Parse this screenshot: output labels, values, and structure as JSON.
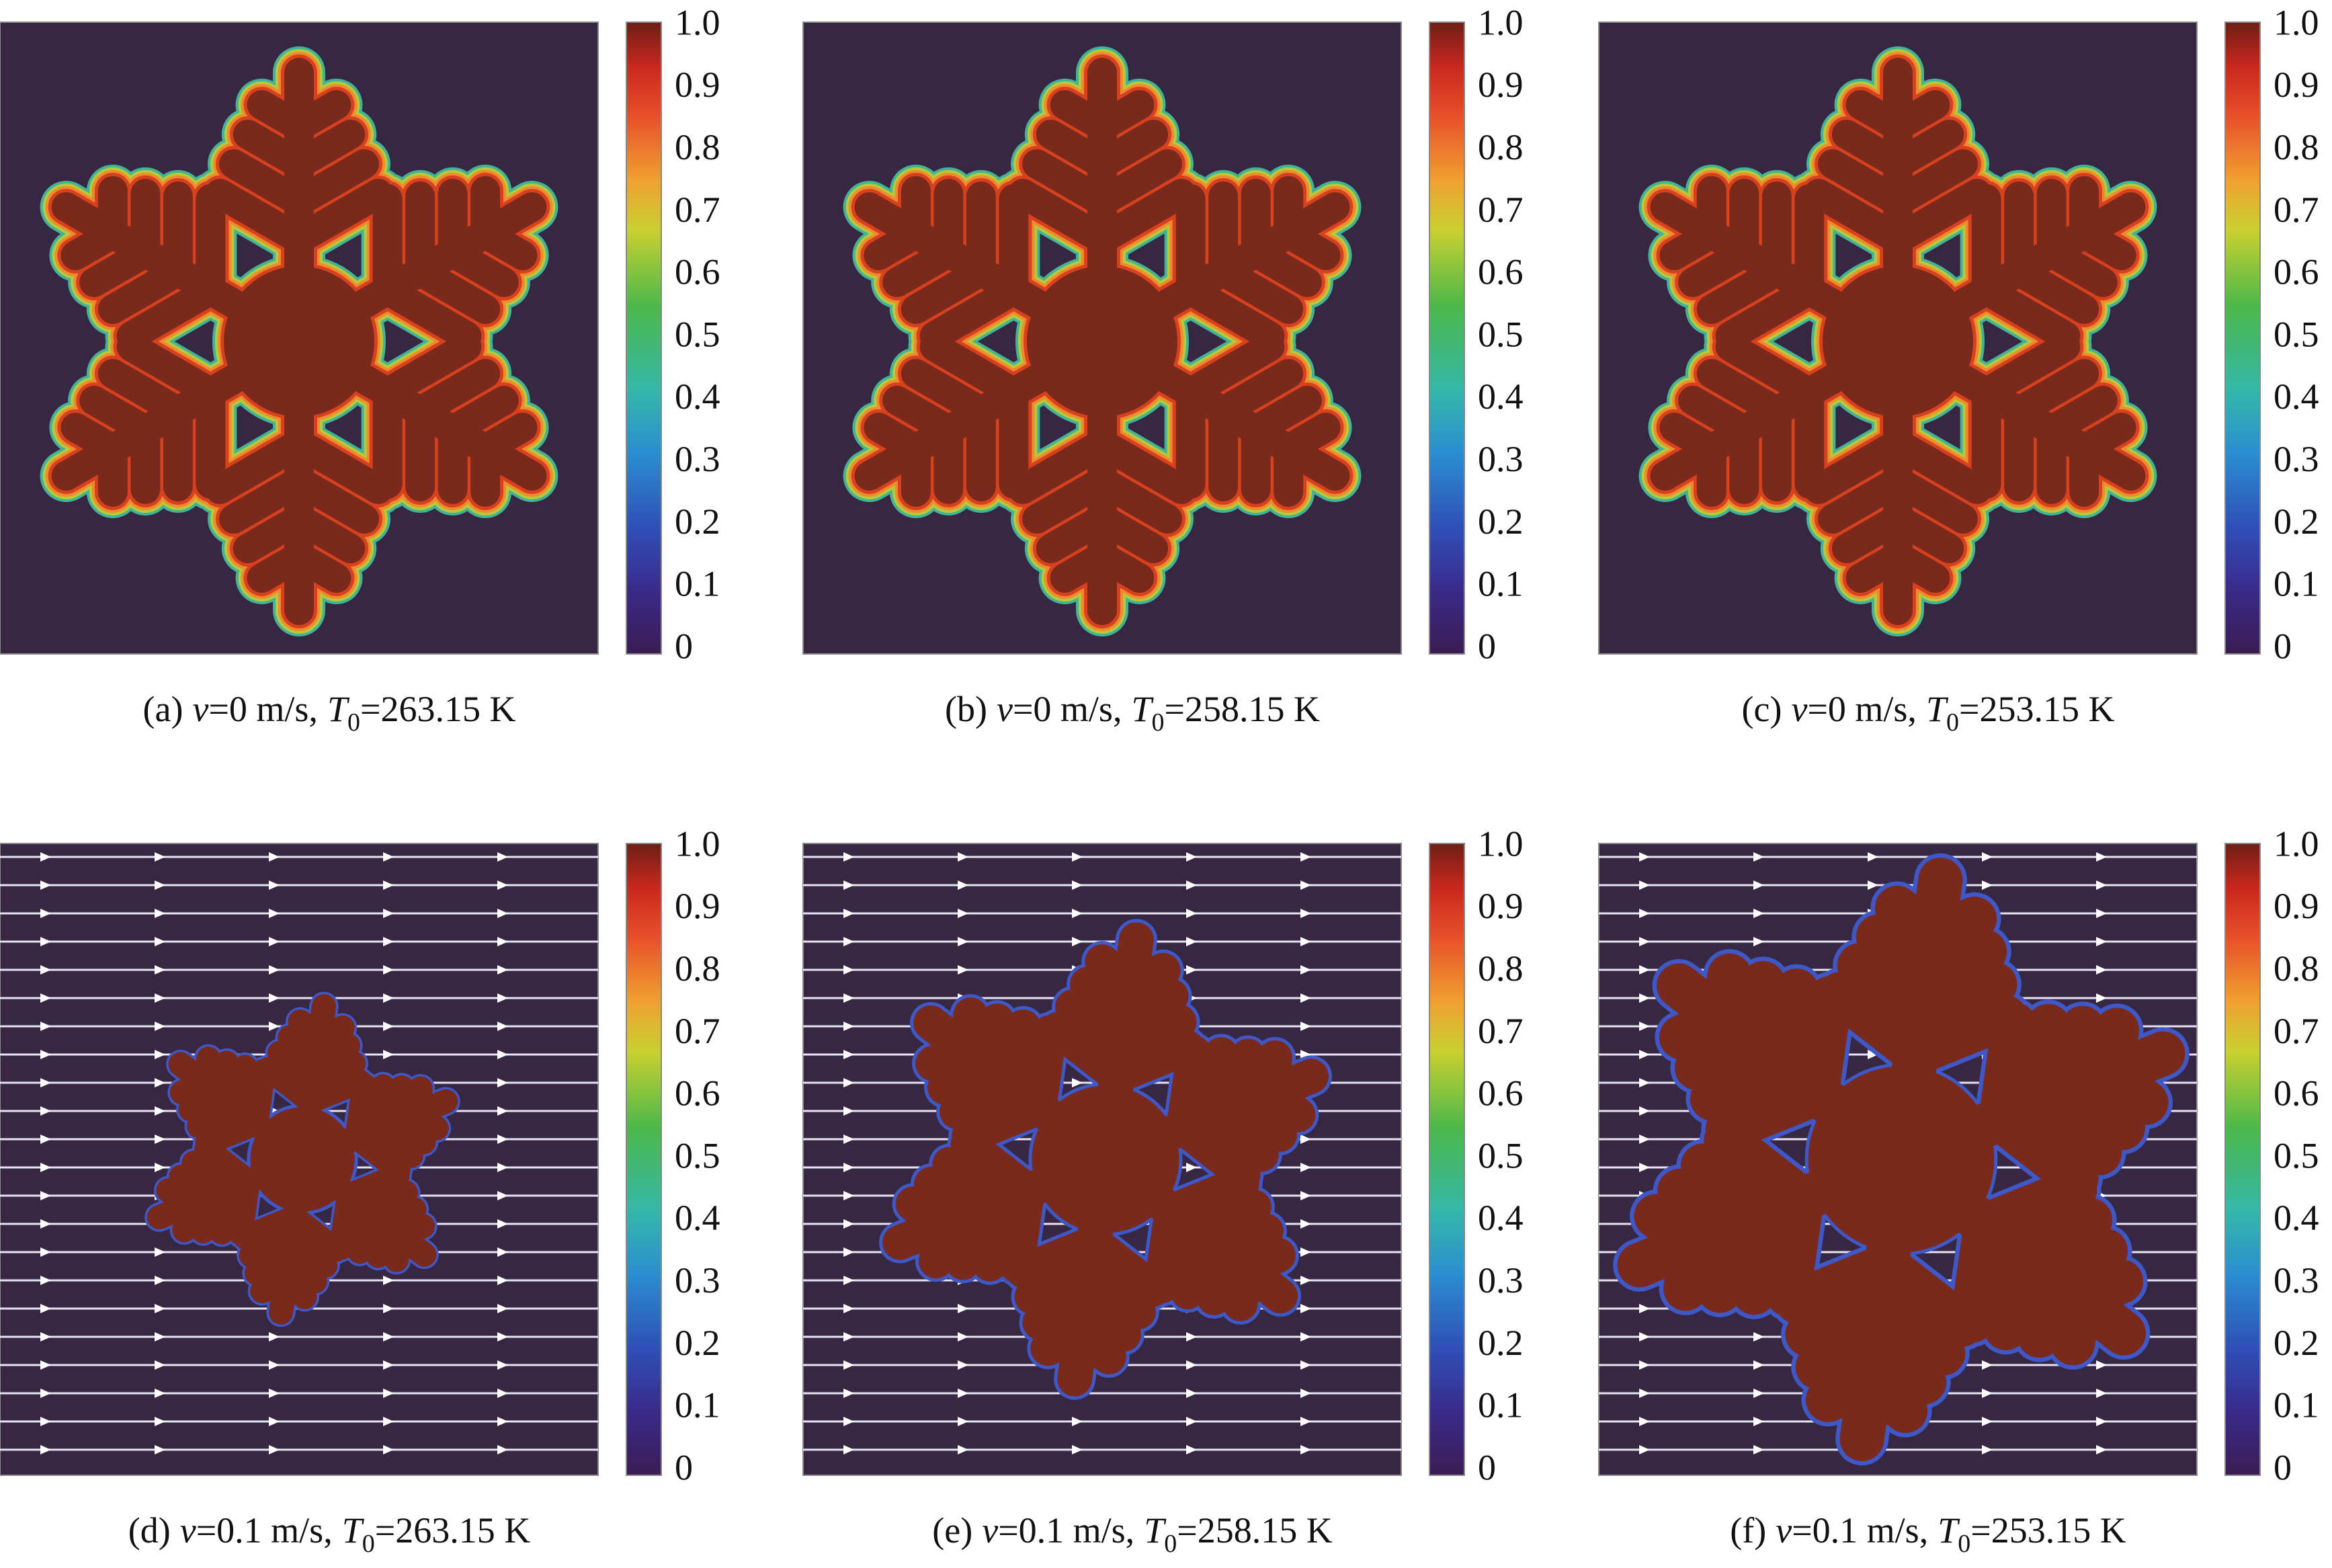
{
  "colorbar": {
    "ticks": [
      "1.0",
      "0.9",
      "0.8",
      "0.7",
      "0.6",
      "0.5",
      "0.4",
      "0.3",
      "0.2",
      "0.1",
      "0"
    ]
  },
  "panels": [
    {
      "label": "(a)",
      "v_symbol": "v",
      "v_text": "=0 m/s,",
      "t_symbol": "T",
      "t_sub": "0",
      "t_text": "=263.15 K"
    },
    {
      "label": "(b)",
      "v_symbol": "v",
      "v_text": "=0 m/s,",
      "t_symbol": "T",
      "t_sub": "0",
      "t_text": "=258.15 K"
    },
    {
      "label": "(c)",
      "v_symbol": "v",
      "v_text": "=0 m/s,",
      "t_symbol": "T",
      "t_sub": "0",
      "t_text": "=253.15 K"
    },
    {
      "label": "(d)",
      "v_symbol": "v",
      "v_text": "=0.1 m/s,",
      "t_symbol": "T",
      "t_sub": "0",
      "t_text": "=263.15 K"
    },
    {
      "label": "(e)",
      "v_symbol": "v",
      "v_text": "=0.1 m/s,",
      "t_symbol": "T",
      "t_sub": "0",
      "t_text": "=258.15 K"
    },
    {
      "label": "(f)",
      "v_symbol": "v",
      "v_text": "=0.1 m/s,",
      "t_symbol": "T",
      "t_sub": "0",
      "t_text": "=253.15 K"
    }
  ]
}
